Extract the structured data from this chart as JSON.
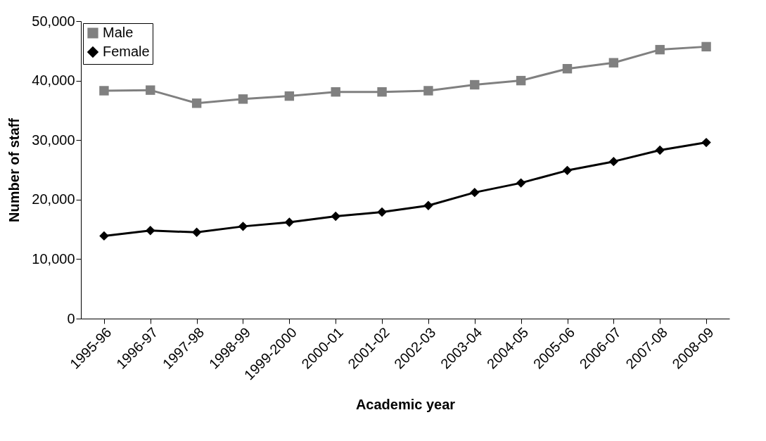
{
  "chart_data": {
    "type": "line",
    "xlabel": "Academic year",
    "ylabel": "Number of staff",
    "categories": [
      "1995-96",
      "1996-97",
      "1997-98",
      "1998-99",
      "1999-2000",
      "2000-01",
      "2001-02",
      "2002-03",
      "2003-04",
      "2004-05",
      "2005-06",
      "2006-07",
      "2007-08",
      "2008-09"
    ],
    "series": [
      {
        "name": "Male",
        "color": "#808080",
        "marker": "square",
        "values": [
          38300,
          38400,
          36200,
          36900,
          37400,
          38100,
          38100,
          38300,
          39300,
          40000,
          42000,
          43000,
          45200,
          45700
        ]
      },
      {
        "name": "Female",
        "color": "#000000",
        "marker": "diamond",
        "values": [
          13900,
          14800,
          14500,
          15500,
          16200,
          17200,
          17900,
          19000,
          21200,
          22800,
          24900,
          26400,
          28300,
          29600
        ]
      }
    ],
    "ylim": [
      0,
      50000
    ],
    "yticks": [
      {
        "value": 0,
        "label": "0"
      },
      {
        "value": 10000,
        "label": "10,000"
      },
      {
        "value": 20000,
        "label": "20,000"
      },
      {
        "value": 30000,
        "label": "30,000"
      },
      {
        "value": 40000,
        "label": "40,000"
      },
      {
        "value": 50000,
        "label": "50,000"
      }
    ],
    "grid": false,
    "legend": "top left"
  }
}
